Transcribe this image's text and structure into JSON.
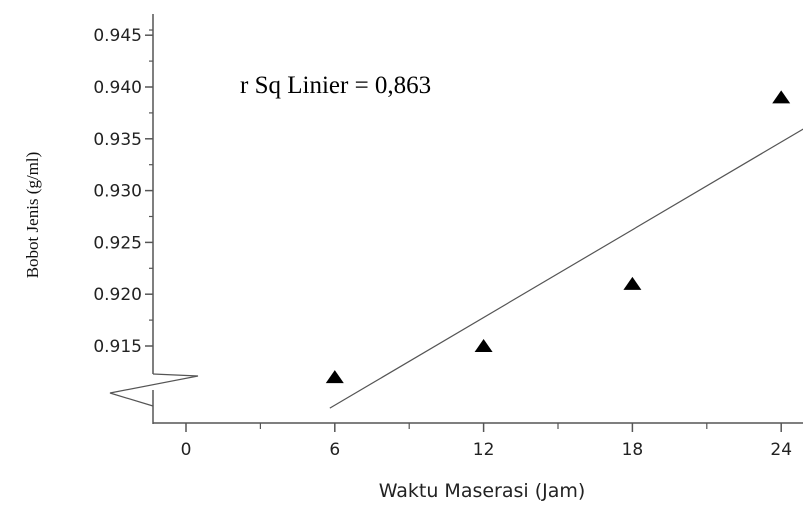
{
  "chart_data": {
    "type": "scatter",
    "xlabel": "Waktu Maserasi (Jam)",
    "ylabel": "Bobot Jenis (g/ml)",
    "x_ticks": [
      0,
      6,
      12,
      18,
      24
    ],
    "y_ticks": [
      0.915,
      0.92,
      0.925,
      0.93,
      0.935,
      0.94,
      0.945
    ],
    "y_tick_labels": [
      "0.915",
      "0.920",
      "0.925",
      "0.930",
      "0.935",
      "0.940",
      "0.945"
    ],
    "xlim": [
      -1.2,
      25
    ],
    "ylim_visible": [
      0.912,
      0.946
    ],
    "y_axis_break": true,
    "grid": false,
    "series": [
      {
        "marker": "triangle",
        "x": [
          6,
          12,
          18,
          24
        ],
        "y": [
          0.912,
          0.915,
          0.921,
          0.939
        ]
      }
    ],
    "fit_line": {
      "type": "linear",
      "x": [
        5.8,
        25
      ],
      "y": [
        0.909,
        0.9361
      ]
    },
    "annotation": "r Sq Linier = 0,863",
    "colors": {
      "axis": "#555555",
      "marker": "#000000",
      "fit_line": "#555555"
    }
  }
}
